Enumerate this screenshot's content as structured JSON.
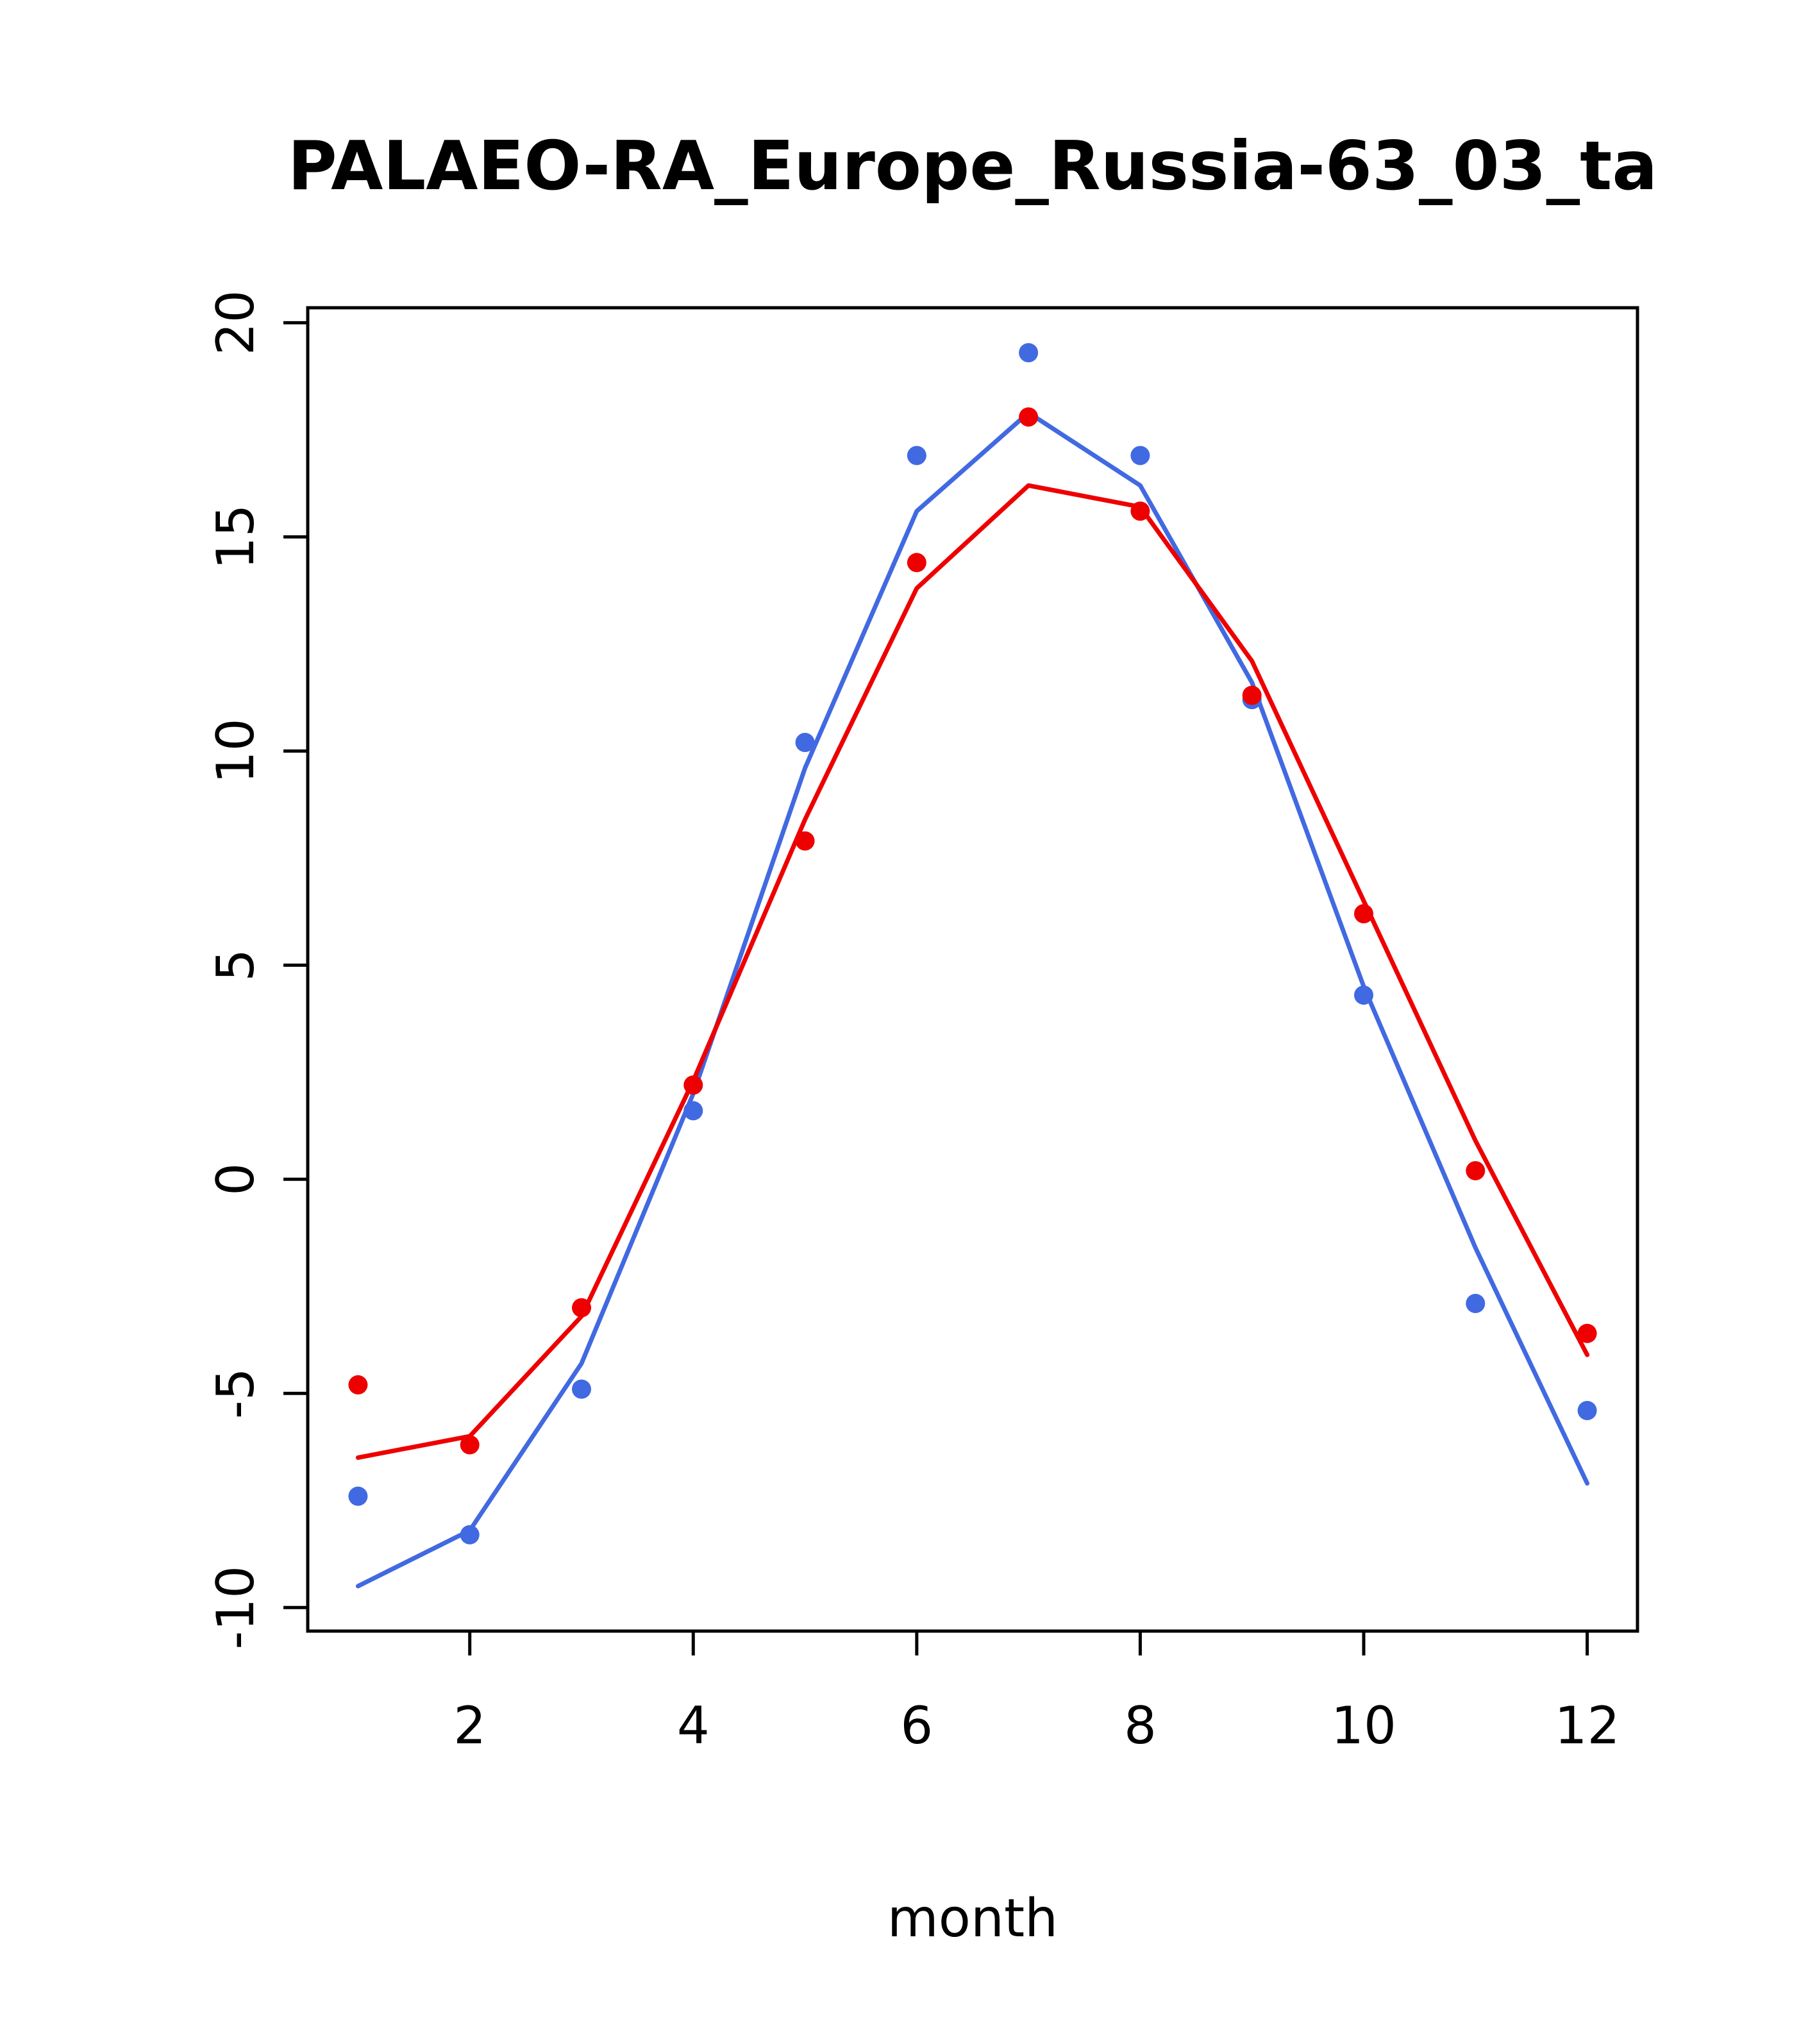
{
  "title": "PALAEO-RA_Europe_Russia-63_03_ta",
  "chart_data": {
    "type": "line",
    "title": "PALAEO-RA_Europe_Russia-63_03_ta",
    "xlabel": "month",
    "ylabel": "",
    "x": [
      1,
      2,
      3,
      4,
      5,
      6,
      7,
      8,
      9,
      10,
      11,
      12
    ],
    "xlim": [
      0.55,
      12.45
    ],
    "ylim": [
      -10.55,
      20.35
    ],
    "x_ticks": [
      2,
      4,
      6,
      8,
      10,
      12
    ],
    "y_ticks": [
      -10,
      -5,
      0,
      5,
      10,
      15,
      20
    ],
    "grid": false,
    "legend": null,
    "colors": {
      "blue": "#4169E1",
      "red": "#EE0000"
    },
    "series": [
      {
        "name": "blue-line",
        "style": "line",
        "color": "#4169E1",
        "values": [
          -9.5,
          -8.2,
          -4.3,
          2.0,
          9.6,
          15.6,
          17.9,
          16.2,
          11.6,
          4.5,
          -1.6,
          -7.1
        ]
      },
      {
        "name": "blue-points",
        "style": "points",
        "color": "#4169E1",
        "values": [
          -7.4,
          -8.3,
          -4.9,
          1.6,
          10.2,
          16.9,
          19.3,
          16.9,
          11.2,
          4.3,
          -2.9,
          -5.4
        ]
      },
      {
        "name": "red-line",
        "style": "line",
        "color": "#EE0000",
        "values": [
          -6.5,
          -6.0,
          -3.2,
          2.3,
          8.4,
          13.8,
          16.2,
          15.7,
          12.1,
          6.5,
          0.9,
          -4.1
        ]
      },
      {
        "name": "red-points",
        "style": "points",
        "color": "#EE0000",
        "values": [
          -4.8,
          -6.2,
          -3.0,
          2.2,
          7.9,
          14.4,
          17.8,
          15.6,
          11.3,
          6.2,
          0.2,
          -3.6
        ]
      }
    ]
  }
}
